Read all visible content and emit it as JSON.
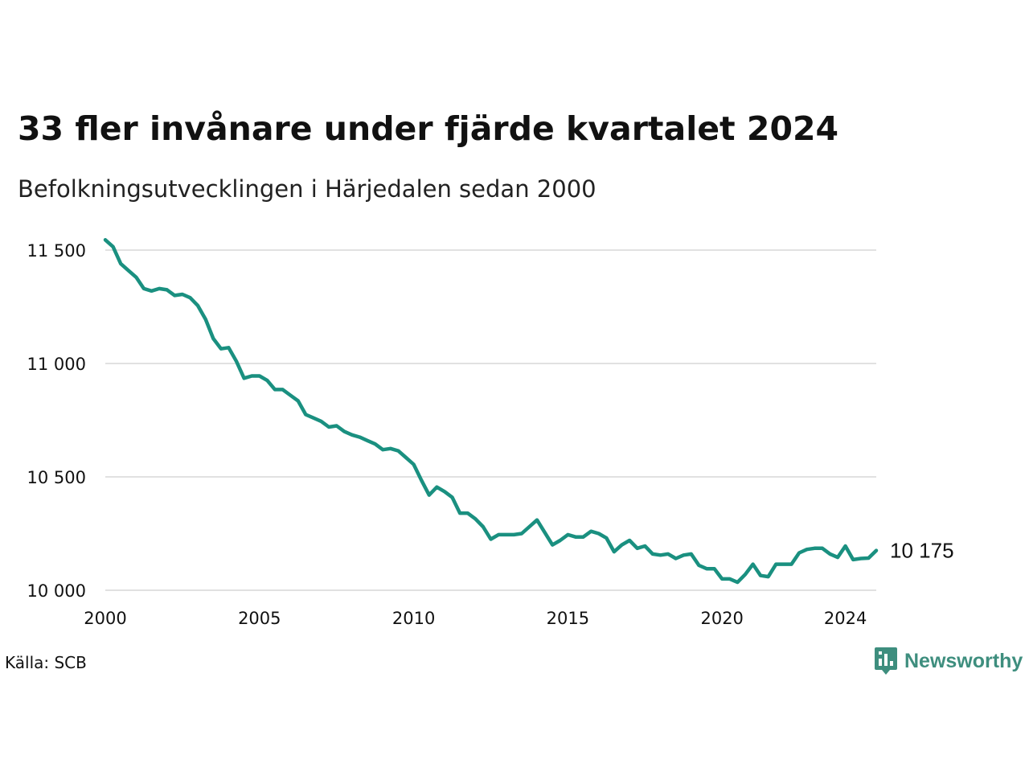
{
  "title": "33 fler invånare under fjärde kvartalet 2024",
  "subtitle": "Befolkningsutvecklingen i Härjedalen sedan 2000",
  "source": "Källa: SCB",
  "brand": {
    "name": "Newsworthy",
    "icon": "newsworthy-logo-icon",
    "color": "#3e8e7e"
  },
  "colors": {
    "line": "#1a9080",
    "grid": "#e1e1e1",
    "text": "#111111"
  },
  "chart_data": {
    "type": "line",
    "title": "",
    "xlabel": "",
    "ylabel": "",
    "xlim": [
      2000.0,
      2025.0
    ],
    "ylim": [
      10000,
      11500
    ],
    "y_ticks": [
      10000,
      10500,
      11000,
      11500
    ],
    "y_tick_labels": [
      "10 000",
      "10 500",
      "11 000",
      "11 500"
    ],
    "x_ticks": [
      2000,
      2005,
      2010,
      2015,
      2020,
      2024
    ],
    "x_tick_labels": [
      "2000",
      "2005",
      "2010",
      "2015",
      "2020",
      "2024"
    ],
    "grid": "horizontal",
    "legend": "none",
    "end_label": "10 175",
    "series": [
      {
        "x": [
          2000.0,
          2000.25,
          2000.5,
          2000.75,
          2001.0,
          2001.25,
          2001.5,
          2001.75,
          2002.0,
          2002.25,
          2002.5,
          2002.75,
          2003.0,
          2003.25,
          2003.5,
          2003.75,
          2004.0,
          2004.25,
          2004.5,
          2004.75,
          2005.0,
          2005.25,
          2005.5,
          2005.75,
          2006.0,
          2006.25,
          2006.5,
          2006.75,
          2007.0,
          2007.25,
          2007.5,
          2007.75,
          2008.0,
          2008.25,
          2008.5,
          2008.75,
          2009.0,
          2009.25,
          2009.5,
          2009.75,
          2010.0,
          2010.25,
          2010.5,
          2010.75,
          2011.0,
          2011.25,
          2011.5,
          2011.75,
          2012.0,
          2012.25,
          2012.5,
          2012.75,
          2013.0,
          2013.25,
          2013.5,
          2013.75,
          2014.0,
          2014.25,
          2014.5,
          2014.75,
          2015.0,
          2015.25,
          2015.5,
          2015.75,
          2016.0,
          2016.25,
          2016.5,
          2016.75,
          2017.0,
          2017.25,
          2017.5,
          2017.75,
          2018.0,
          2018.25,
          2018.5,
          2018.75,
          2019.0,
          2019.25,
          2019.5,
          2019.75,
          2020.0,
          2020.25,
          2020.5,
          2020.75,
          2021.0,
          2021.25,
          2021.5,
          2021.75,
          2022.0,
          2022.25,
          2022.5,
          2022.75,
          2023.0,
          2023.25,
          2023.5,
          2023.75,
          2024.0,
          2024.25,
          2024.5,
          2024.75,
          2025.0
        ],
        "values": [
          11545,
          11515,
          11440,
          11410,
          11380,
          11330,
          11320,
          11330,
          11325,
          11300,
          11305,
          11290,
          11255,
          11195,
          11110,
          11065,
          11070,
          11010,
          10935,
          10945,
          10945,
          10925,
          10885,
          10885,
          10860,
          10835,
          10775,
          10760,
          10745,
          10720,
          10725,
          10700,
          10685,
          10675,
          10660,
          10645,
          10620,
          10625,
          10615,
          10585,
          10555,
          10485,
          10420,
          10455,
          10435,
          10410,
          10340,
          10340,
          10315,
          10280,
          10225,
          10245,
          10245,
          10245,
          10250,
          10280,
          10310,
          10255,
          10200,
          10220,
          10245,
          10235,
          10235,
          10260,
          10250,
          10230,
          10170,
          10200,
          10220,
          10185,
          10195,
          10160,
          10155,
          10160,
          10140,
          10155,
          10160,
          10110,
          10095,
          10095,
          10050,
          10050,
          10035,
          10070,
          10115,
          10065,
          10060,
          10115,
          10115,
          10115,
          10165,
          10180,
          10185,
          10185,
          10160,
          10145,
          10195,
          10135,
          10140,
          10142,
          10175
        ]
      }
    ]
  }
}
